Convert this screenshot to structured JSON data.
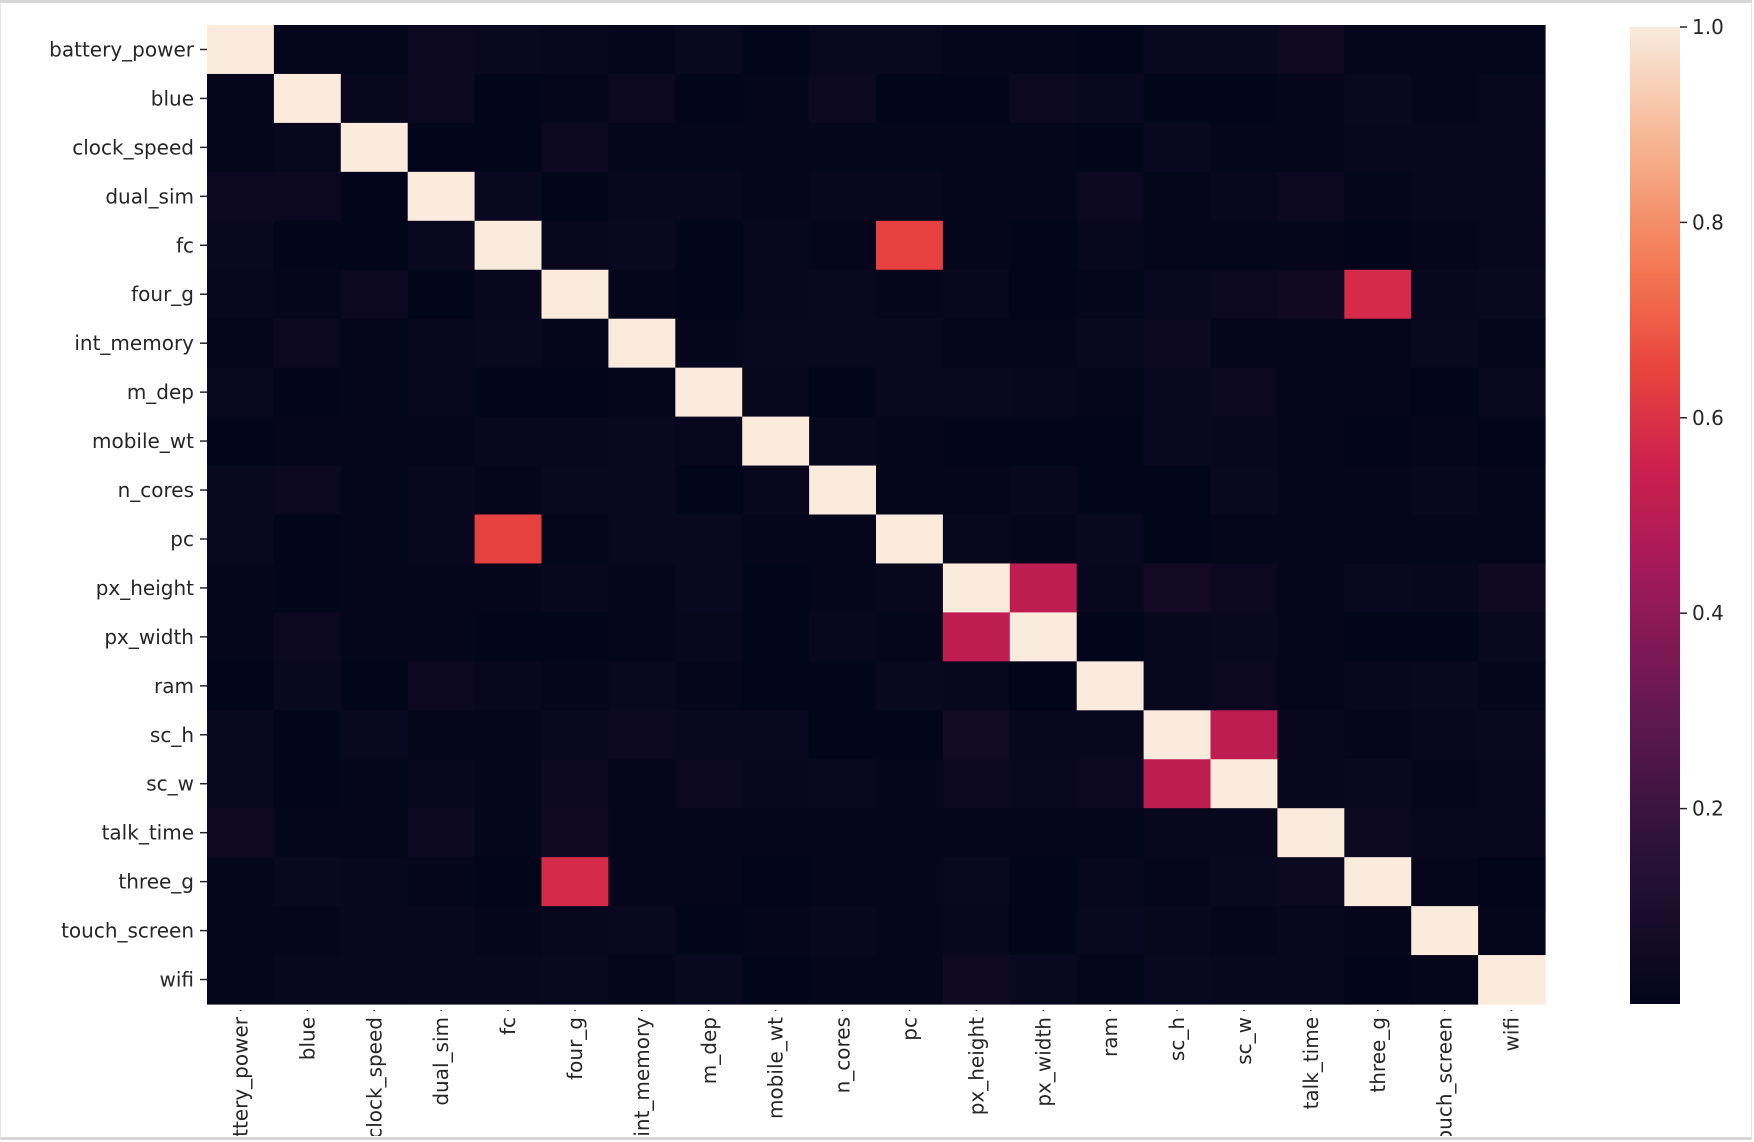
{
  "chart_data": {
    "type": "heatmap",
    "title": "",
    "xlabel": "",
    "ylabel": "",
    "labels": [
      "battery_power",
      "blue",
      "clock_speed",
      "dual_sim",
      "fc",
      "four_g",
      "int_memory",
      "m_dep",
      "mobile_wt",
      "n_cores",
      "pc",
      "px_height",
      "px_width",
      "ram",
      "sc_h",
      "sc_w",
      "talk_time",
      "three_g",
      "touch_screen",
      "wifi"
    ],
    "x_tick_labels": [
      "battery_power",
      "blue",
      "clock_speed",
      "dual_sim",
      "fc",
      "four_g",
      "int_memory",
      "m_dep",
      "mobile_wt",
      "n_cores",
      "pc",
      "px_height",
      "px_width",
      "ram",
      "sc_h",
      "sc_w",
      "talk_time",
      "three_g",
      "touch_screen",
      "wifi"
    ],
    "y_tick_labels": [
      "battery_power",
      "blue",
      "clock_speed",
      "dual_sim",
      "fc",
      "four_g",
      "int_memory",
      "m_dep",
      "mobile_wt",
      "n_cores",
      "pc",
      "px_height",
      "px_width",
      "ram",
      "sc_h",
      "sc_w",
      "talk_time",
      "three_g",
      "touch_screen",
      "wifi"
    ],
    "colormap": "rocket",
    "colorbar": {
      "min": 0.0,
      "max": 1.0,
      "ticks": [
        0.2,
        0.4,
        0.6,
        0.8,
        1.0
      ],
      "tick_labels": [
        "0.2",
        "0.4",
        "0.6",
        "0.8",
        "1.0"
      ]
    },
    "values": [
      [
        1.0,
        0.01,
        0.01,
        0.04,
        0.03,
        0.02,
        0.01,
        0.03,
        0.0,
        0.03,
        0.03,
        0.01,
        0.01,
        0.0,
        0.03,
        0.03,
        0.05,
        0.01,
        0.01,
        0.01
      ],
      [
        0.01,
        1.0,
        0.02,
        0.04,
        0.0,
        0.01,
        0.04,
        0.0,
        0.01,
        0.04,
        0.0,
        0.0,
        0.04,
        0.03,
        0.0,
        0.0,
        0.01,
        0.03,
        0.01,
        0.02
      ],
      [
        0.01,
        0.02,
        1.0,
        0.0,
        0.0,
        0.04,
        0.01,
        0.01,
        0.01,
        0.01,
        0.01,
        0.01,
        0.01,
        0.0,
        0.03,
        0.01,
        0.01,
        0.02,
        0.02,
        0.02
      ],
      [
        0.04,
        0.04,
        0.0,
        1.0,
        0.03,
        0.0,
        0.02,
        0.02,
        0.01,
        0.02,
        0.02,
        0.01,
        0.01,
        0.04,
        0.01,
        0.02,
        0.04,
        0.01,
        0.02,
        0.02
      ],
      [
        0.03,
        0.0,
        0.0,
        0.03,
        1.0,
        0.02,
        0.03,
        0.0,
        0.02,
        0.01,
        0.64,
        0.01,
        0.0,
        0.02,
        0.01,
        0.01,
        0.01,
        0.0,
        0.01,
        0.02
      ],
      [
        0.02,
        0.01,
        0.04,
        0.0,
        0.02,
        1.0,
        0.01,
        0.0,
        0.02,
        0.03,
        0.01,
        0.02,
        0.0,
        0.01,
        0.03,
        0.04,
        0.05,
        0.58,
        0.02,
        0.03
      ],
      [
        0.01,
        0.04,
        0.01,
        0.02,
        0.03,
        0.01,
        1.0,
        0.01,
        0.03,
        0.03,
        0.03,
        0.01,
        0.01,
        0.03,
        0.04,
        0.01,
        0.01,
        0.01,
        0.03,
        0.01
      ],
      [
        0.03,
        0.0,
        0.01,
        0.02,
        0.0,
        0.0,
        0.01,
        1.0,
        0.02,
        0.0,
        0.03,
        0.03,
        0.02,
        0.01,
        0.03,
        0.04,
        0.01,
        0.01,
        0.0,
        0.03
      ],
      [
        0.0,
        0.01,
        0.01,
        0.01,
        0.02,
        0.02,
        0.03,
        0.02,
        1.0,
        0.02,
        0.01,
        0.0,
        0.0,
        0.0,
        0.03,
        0.02,
        0.01,
        0.0,
        0.01,
        0.0
      ],
      [
        0.03,
        0.04,
        0.01,
        0.02,
        0.01,
        0.03,
        0.03,
        0.0,
        0.02,
        1.0,
        0.01,
        0.01,
        0.02,
        0.0,
        0.0,
        0.03,
        0.01,
        0.01,
        0.02,
        0.01
      ],
      [
        0.03,
        0.0,
        0.01,
        0.02,
        0.64,
        0.01,
        0.03,
        0.03,
        0.01,
        0.01,
        1.0,
        0.02,
        0.01,
        0.03,
        0.0,
        0.01,
        0.01,
        0.01,
        0.01,
        0.01
      ],
      [
        0.01,
        0.0,
        0.01,
        0.01,
        0.01,
        0.02,
        0.01,
        0.03,
        0.0,
        0.01,
        0.02,
        1.0,
        0.51,
        0.02,
        0.06,
        0.04,
        0.01,
        0.03,
        0.02,
        0.05
      ],
      [
        0.01,
        0.04,
        0.01,
        0.01,
        0.0,
        0.0,
        0.01,
        0.02,
        0.0,
        0.02,
        0.01,
        0.51,
        1.0,
        0.0,
        0.02,
        0.03,
        0.01,
        0.0,
        0.0,
        0.03
      ],
      [
        0.0,
        0.03,
        0.0,
        0.04,
        0.02,
        0.01,
        0.03,
        0.01,
        0.0,
        0.0,
        0.03,
        0.02,
        0.0,
        1.0,
        0.02,
        0.04,
        0.01,
        0.02,
        0.03,
        0.01
      ],
      [
        0.03,
        0.0,
        0.03,
        0.01,
        0.01,
        0.03,
        0.04,
        0.03,
        0.03,
        0.0,
        0.0,
        0.06,
        0.02,
        0.02,
        1.0,
        0.51,
        0.02,
        0.01,
        0.02,
        0.03
      ],
      [
        0.03,
        0.0,
        0.01,
        0.02,
        0.01,
        0.04,
        0.01,
        0.04,
        0.02,
        0.03,
        0.01,
        0.04,
        0.03,
        0.04,
        0.51,
        1.0,
        0.02,
        0.03,
        0.01,
        0.02
      ],
      [
        0.05,
        0.01,
        0.01,
        0.04,
        0.01,
        0.05,
        0.01,
        0.01,
        0.01,
        0.01,
        0.01,
        0.01,
        0.01,
        0.01,
        0.02,
        0.02,
        1.0,
        0.04,
        0.02,
        0.02
      ],
      [
        0.01,
        0.03,
        0.02,
        0.01,
        0.0,
        0.58,
        0.01,
        0.01,
        0.0,
        0.01,
        0.01,
        0.03,
        0.0,
        0.02,
        0.01,
        0.03,
        0.04,
        1.0,
        0.01,
        0.0
      ],
      [
        0.01,
        0.01,
        0.02,
        0.02,
        0.01,
        0.02,
        0.03,
        0.0,
        0.01,
        0.02,
        0.01,
        0.02,
        0.0,
        0.03,
        0.02,
        0.01,
        0.02,
        0.01,
        1.0,
        0.01
      ],
      [
        0.01,
        0.02,
        0.02,
        0.02,
        0.02,
        0.03,
        0.01,
        0.03,
        0.0,
        0.01,
        0.01,
        0.05,
        0.03,
        0.01,
        0.03,
        0.02,
        0.02,
        0.0,
        0.01,
        1.0
      ]
    ]
  }
}
